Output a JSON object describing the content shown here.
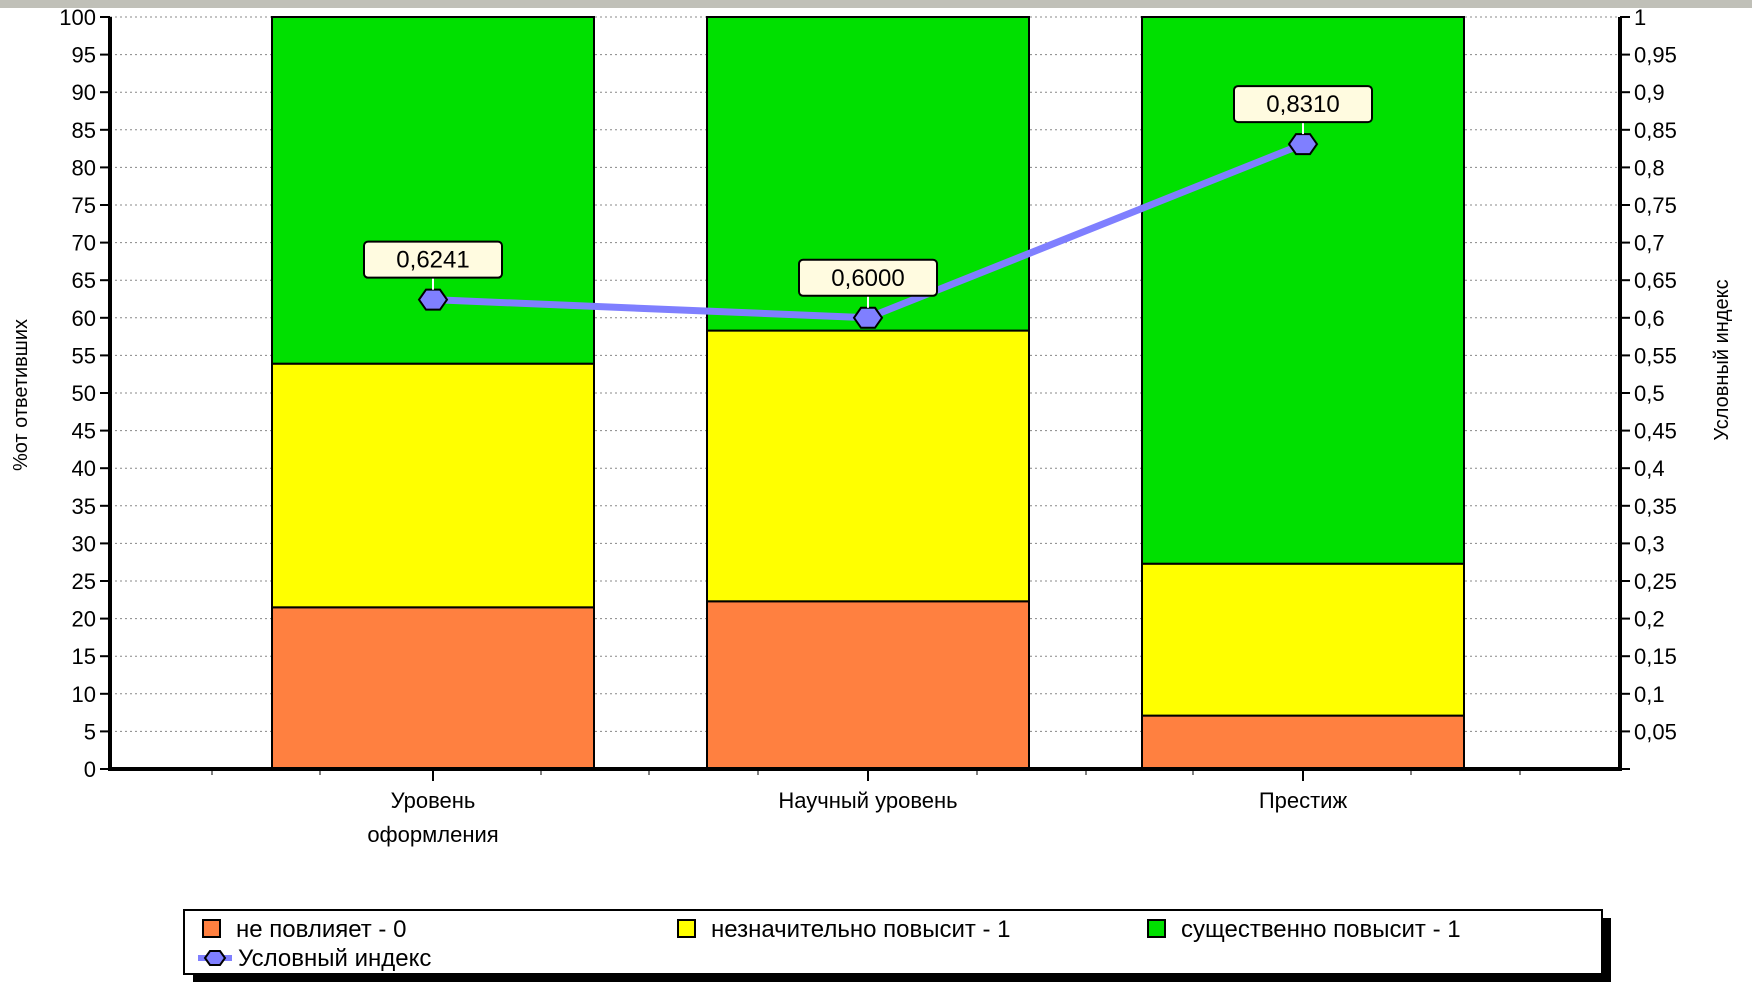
{
  "chart_data": {
    "type": "bar",
    "stacked": true,
    "categories": [
      [
        "Уровень",
        "оформления"
      ],
      [
        "Научный уровень"
      ],
      [
        "Престиж"
      ]
    ],
    "series": [
      {
        "name": "не повлияет - 0",
        "color": "#ff8040",
        "values": [
          21.5,
          22.3,
          7.1
        ]
      },
      {
        "name": "незначительно повысит - 1",
        "color": "#ffff00",
        "values": [
          32.4,
          36.0,
          20.2
        ]
      },
      {
        "name": "существенно повысит - 1",
        "color": "#00e000",
        "values": [
          46.1,
          41.7,
          72.7
        ]
      }
    ],
    "line_series": {
      "name": "Условный индекс",
      "color": "#7f7fff",
      "values": [
        0.6241,
        0.6,
        0.831
      ],
      "labels": [
        "0,6241",
        "0,6000",
        "0,8310"
      ]
    },
    "ylabel": "%от ответивших",
    "y2label": "Условный индекс",
    "ylim": [
      0,
      100
    ],
    "y2lim": [
      0,
      1
    ],
    "yticks": [
      "0",
      "5",
      "10",
      "15",
      "20",
      "25",
      "30",
      "35",
      "40",
      "45",
      "50",
      "55",
      "60",
      "65",
      "70",
      "75",
      "80",
      "85",
      "90",
      "95",
      "100"
    ],
    "y2ticks": [
      "",
      "0,05",
      "0,1",
      "0,15",
      "0,2",
      "0,25",
      "0,3",
      "0,35",
      "0,4",
      "0,45",
      "0,5",
      "0,55",
      "0,6",
      "0,65",
      "0,7",
      "0,75",
      "0,8",
      "0,85",
      "0,9",
      "0,95",
      "1"
    ],
    "grid": true,
    "legend_position": "bottom"
  }
}
